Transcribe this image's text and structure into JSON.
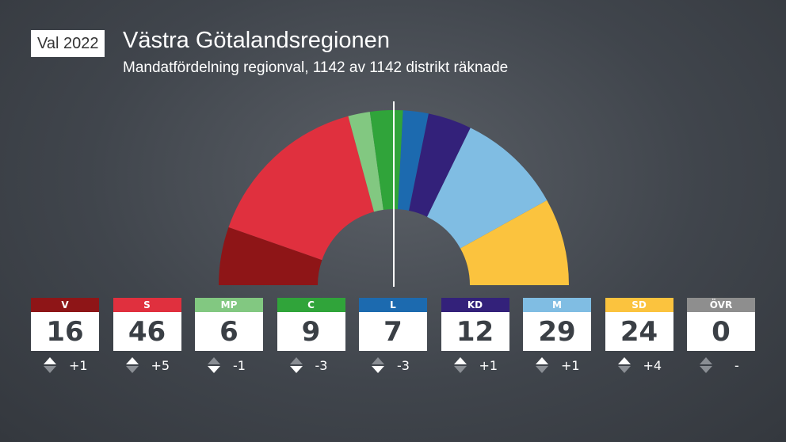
{
  "header": {
    "badge": "Val 2022",
    "title": "Västra Götalandsregionen",
    "subtitle": "Mandatfördelning regionval, 1142 av 1142 distrikt räknade"
  },
  "chart_data": {
    "type": "parliament-semicircle",
    "title": "Västra Götalandsregionen",
    "majority_line": true,
    "parties": [
      {
        "name": "V",
        "seats": 16,
        "change": "+1",
        "direction": "up",
        "color": "#8e1517"
      },
      {
        "name": "S",
        "seats": 46,
        "change": "+5",
        "direction": "up",
        "color": "#e0303e"
      },
      {
        "name": "MP",
        "seats": 6,
        "change": "-1",
        "direction": "down",
        "color": "#82c881"
      },
      {
        "name": "C",
        "seats": 9,
        "change": "-3",
        "direction": "down",
        "color": "#30a43a"
      },
      {
        "name": "L",
        "seats": 7,
        "change": "-3",
        "direction": "down",
        "color": "#1c6aaf"
      },
      {
        "name": "KD",
        "seats": 12,
        "change": "+1",
        "direction": "up",
        "color": "#33217a"
      },
      {
        "name": "M",
        "seats": 29,
        "change": "+1",
        "direction": "up",
        "color": "#80bde3"
      },
      {
        "name": "SD",
        "seats": 24,
        "change": "+4",
        "direction": "up",
        "color": "#fbc33e"
      },
      {
        "name": "ÖVR",
        "seats": 0,
        "change": "-",
        "direction": "none",
        "color": "#8e8e8e"
      }
    ]
  }
}
